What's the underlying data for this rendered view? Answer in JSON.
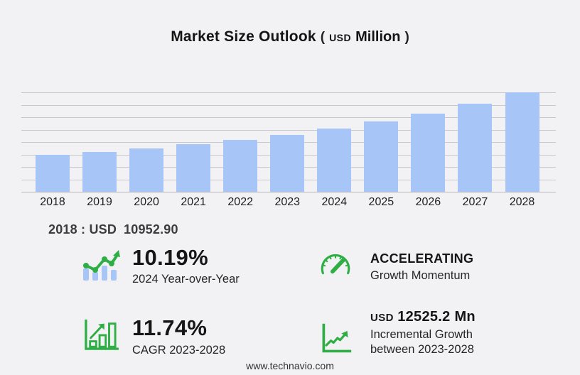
{
  "title": {
    "main": "Market Size Outlook",
    "open_paren": "(",
    "currency": "USD",
    "scale": "Million",
    "close_paren": ")"
  },
  "baseline_note": {
    "label": "2018 : USD",
    "value": "10952.90"
  },
  "chart_data": {
    "type": "bar",
    "title": "Market Size Outlook (USD Million)",
    "categories": [
      "2018",
      "2019",
      "2020",
      "2021",
      "2022",
      "2023",
      "2024",
      "2025",
      "2026",
      "2027",
      "2028"
    ],
    "values": [
      10952.9,
      11850,
      12900,
      14100,
      15400,
      16880,
      18600,
      20700,
      23100,
      26000,
      29405.2
    ],
    "xlabel": "",
    "ylabel": "",
    "ylim": [
      0,
      29405.2
    ],
    "grid": true,
    "legend": false,
    "bar_color": "#a8c5f8"
  },
  "stats": [
    {
      "icon": "bar-chart-trend-icon",
      "value": "10.19%",
      "label": "2024 Year-over-Year"
    },
    {
      "icon": "speedometer-icon",
      "value": "ACCELERATING",
      "label": "Growth Momentum"
    },
    {
      "icon": "bar-growth-outline-icon",
      "value": "11.74%",
      "label": "CAGR 2023-2028"
    },
    {
      "icon": "axes-growth-icon",
      "value_prefix": "USD",
      "value": "12525.2 Mn",
      "label_line1": "Incremental Growth",
      "label_line2": "between 2023-2028"
    }
  ],
  "footer": {
    "website": "www.technavio.com"
  },
  "colors": {
    "background": "#f2f2f4",
    "bar": "#a8c5f8",
    "grid": "#c9c9cd",
    "axis": "#b7b7bc",
    "green": "#2fae46",
    "text_dark": "#161616",
    "text_mid": "#3c3c3c"
  }
}
